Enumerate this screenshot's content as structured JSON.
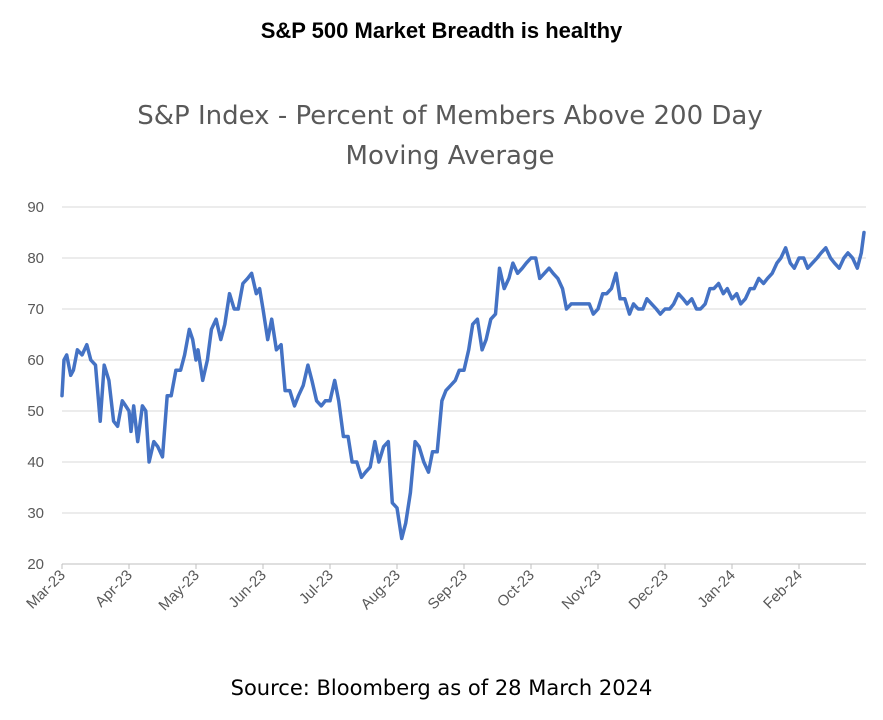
{
  "headline": "S&P 500 Market Breadth is healthy",
  "source": "Source: Bloomberg as of 28 March 2024",
  "chart_data": {
    "type": "line",
    "title_line1": "S&P Index - Percent of Members Above 200 Day",
    "title_line2": "Moving Average",
    "xlabel": "",
    "ylabel": "",
    "ylim": [
      20,
      90
    ],
    "yticks": [
      20,
      30,
      40,
      50,
      60,
      70,
      80,
      90
    ],
    "grid": true,
    "line_color": "#4472C4",
    "x_tick_labels": [
      "Mar-23",
      "Apr-23",
      "May-23",
      "Jun-23",
      "Jul-23",
      "Aug-23",
      "Sep-23",
      "Oct-23",
      "Nov-23",
      "Dec-23",
      "Jan-24",
      "Feb-24"
    ],
    "series": [
      {
        "x": [
          0.0,
          0.03,
          0.07,
          0.13,
          0.17,
          0.23,
          0.3,
          0.37,
          0.43,
          0.5,
          0.57,
          0.63,
          0.7,
          0.77,
          0.83,
          0.9,
          0.95,
          1.0,
          1.03,
          1.07,
          1.13,
          1.2,
          1.25,
          1.3,
          1.37,
          1.43,
          1.5,
          1.57,
          1.63,
          1.7,
          1.77,
          1.83,
          1.9,
          1.95,
          2.0,
          2.03,
          2.1,
          2.17,
          2.23,
          2.3,
          2.37,
          2.43,
          2.5,
          2.57,
          2.63,
          2.7,
          2.77,
          2.83,
          2.9,
          2.95,
          3.0,
          3.07,
          3.13,
          3.2,
          3.27,
          3.33,
          3.4,
          3.47,
          3.53,
          3.6,
          3.67,
          3.73,
          3.8,
          3.87,
          3.93,
          4.0,
          4.07,
          4.13,
          4.2,
          4.27,
          4.33,
          4.4,
          4.47,
          4.53,
          4.6,
          4.67,
          4.73,
          4.8,
          4.87,
          4.93,
          5.0,
          5.07,
          5.13,
          5.2,
          5.27,
          5.33,
          5.4,
          5.47,
          5.53,
          5.6,
          5.67,
          5.73,
          5.8,
          5.87,
          5.93,
          6.0,
          6.07,
          6.13,
          6.2,
          6.27,
          6.33,
          6.4,
          6.47,
          6.53,
          6.6,
          6.67,
          6.73,
          6.8,
          6.87,
          6.93,
          7.0,
          7.07,
          7.13,
          7.2,
          7.27,
          7.33,
          7.4,
          7.47,
          7.53,
          7.6,
          7.67,
          7.73,
          7.8,
          7.87,
          7.93,
          8.0,
          8.07,
          8.13,
          8.2,
          8.27,
          8.33,
          8.4,
          8.47,
          8.53,
          8.6,
          8.67,
          8.73,
          8.8,
          8.87,
          8.93,
          9.0,
          9.07,
          9.13,
          9.2,
          9.27,
          9.33,
          9.4,
          9.47,
          9.53,
          9.6,
          9.67,
          9.73,
          9.8,
          9.87,
          9.93,
          10.0,
          10.07,
          10.13,
          10.2,
          10.27,
          10.33,
          10.4,
          10.47,
          10.53,
          10.6,
          10.67,
          10.73,
          10.8,
          10.87,
          10.93,
          11.0,
          11.07,
          11.13,
          11.2,
          11.27,
          11.33,
          11.4,
          11.47,
          11.53,
          11.6,
          11.67,
          11.73,
          11.8,
          11.87,
          11.93,
          11.97
        ],
        "values": [
          53,
          60,
          61,
          57,
          58,
          62,
          61,
          63,
          60,
          59,
          48,
          59,
          56,
          48,
          47,
          52,
          51,
          50,
          46,
          51,
          44,
          51,
          50,
          40,
          44,
          43,
          41,
          53,
          53,
          58,
          58,
          61,
          66,
          64,
          60,
          62,
          56,
          60,
          66,
          68,
          64,
          67,
          73,
          70,
          70,
          75,
          76,
          77,
          73,
          74,
          70,
          64,
          68,
          62,
          63,
          54,
          54,
          51,
          53,
          55,
          59,
          56,
          52,
          51,
          52,
          52,
          56,
          52,
          45,
          45,
          40,
          40,
          37,
          38,
          39,
          44,
          40,
          43,
          44,
          32,
          31,
          25,
          28,
          34,
          44,
          43,
          40,
          38,
          42,
          42,
          52,
          54,
          55,
          56,
          58,
          58,
          62,
          67,
          68,
          62,
          64,
          68,
          69,
          78,
          74,
          76,
          79,
          77,
          78,
          79,
          80,
          80,
          76,
          77,
          78,
          77,
          76,
          74,
          70,
          71,
          71,
          71,
          71,
          71,
          69,
          70,
          73,
          73,
          74,
          77,
          72,
          72,
          69,
          71,
          70,
          70,
          72,
          71,
          70,
          69,
          70,
          70,
          71,
          73,
          72,
          71,
          72,
          70,
          70,
          71,
          74,
          74,
          75,
          73,
          74,
          72,
          73,
          71,
          72,
          74,
          74,
          76,
          75,
          76,
          77,
          79,
          80,
          82,
          79,
          78,
          80,
          80,
          78,
          79,
          80,
          81,
          82,
          80,
          79,
          78,
          80,
          81,
          80,
          78,
          81,
          85
        ]
      }
    ]
  }
}
